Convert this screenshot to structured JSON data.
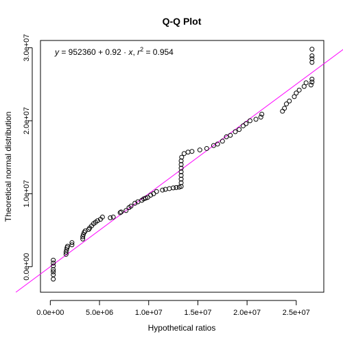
{
  "chart_data": {
    "type": "scatter",
    "title": "Q-Q Plot",
    "xlabel": "Hypothetical ratios",
    "ylabel": "Theoretical normal distribution",
    "xlim": [
      -1000000,
      27800000
    ],
    "ylim": [
      -3500000,
      31000000
    ],
    "x_ticks": [
      0,
      5000000,
      10000000,
      15000000,
      20000000,
      25000000
    ],
    "x_tick_labels": [
      "0.0e+00",
      "5.0e+06",
      "1.0e+07",
      "1.5e+07",
      "2.0e+07",
      "2.5e+07"
    ],
    "y_ticks": [
      0,
      10000000,
      20000000,
      30000000
    ],
    "y_tick_labels": [
      "0.0e+00",
      "1.0e+07",
      "2.0e+07",
      "3.0e+07"
    ],
    "grid": false,
    "annotation": {
      "y_var": "y",
      "rhs": "= 952360 + 0.92 ·",
      "x_var": "x",
      "r_var": "r",
      "r_exp": "2",
      "r_value": "= 0.954"
    },
    "reference_line": {
      "intercept": 0,
      "slope": 1,
      "color": "#ff00ff"
    },
    "series": [
      {
        "points": [
          [
            300000,
            -1700000
          ],
          [
            300000,
            -1100000
          ],
          [
            300000,
            -700000
          ],
          [
            300000,
            -400000
          ],
          [
            300000,
            100000
          ],
          [
            300000,
            500000
          ],
          [
            300000,
            900000
          ],
          [
            1600000,
            1700000
          ],
          [
            1600000,
            2000000
          ],
          [
            1650000,
            2300000
          ],
          [
            1700000,
            2600000
          ],
          [
            1750000,
            2800000
          ],
          [
            2200000,
            3000000
          ],
          [
            2200000,
            3300000
          ],
          [
            3300000,
            3800000
          ],
          [
            3300000,
            4100000
          ],
          [
            3350000,
            4400000
          ],
          [
            3450000,
            4700000
          ],
          [
            3550000,
            4900000
          ],
          [
            3900000,
            5100000
          ],
          [
            4000000,
            5300000
          ],
          [
            4200000,
            5600000
          ],
          [
            4400000,
            5900000
          ],
          [
            4600000,
            6100000
          ],
          [
            4800000,
            6300000
          ],
          [
            5100000,
            6500000
          ],
          [
            5300000,
            6800000
          ],
          [
            6100000,
            6700000
          ],
          [
            6400000,
            6800000
          ],
          [
            7100000,
            7400000
          ],
          [
            7200000,
            7500000
          ],
          [
            7700000,
            7700000
          ],
          [
            8000000,
            8100000
          ],
          [
            8200000,
            8300000
          ],
          [
            8600000,
            8700000
          ],
          [
            8900000,
            8900000
          ],
          [
            9300000,
            9100000
          ],
          [
            9500000,
            9300000
          ],
          [
            9700000,
            9400000
          ],
          [
            9900000,
            9500000
          ],
          [
            10200000,
            9800000
          ],
          [
            10500000,
            10000000
          ],
          [
            10800000,
            10300000
          ],
          [
            11400000,
            10500000
          ],
          [
            11700000,
            10600000
          ],
          [
            12100000,
            10700000
          ],
          [
            12500000,
            10800000
          ],
          [
            12800000,
            10850000
          ],
          [
            13100000,
            10900000
          ],
          [
            13300000,
            11000000
          ],
          [
            13300000,
            11500000
          ],
          [
            13300000,
            12000000
          ],
          [
            13300000,
            12500000
          ],
          [
            13300000,
            13000000
          ],
          [
            13300000,
            13500000
          ],
          [
            13300000,
            14000000
          ],
          [
            13300000,
            14500000
          ],
          [
            13350000,
            15000000
          ],
          [
            13600000,
            15500000
          ],
          [
            14000000,
            15700000
          ],
          [
            14400000,
            15800000
          ],
          [
            15200000,
            16000000
          ],
          [
            15900000,
            16200000
          ],
          [
            16600000,
            16600000
          ],
          [
            17000000,
            16800000
          ],
          [
            17500000,
            17200000
          ],
          [
            17900000,
            17800000
          ],
          [
            18300000,
            18000000
          ],
          [
            18800000,
            18500000
          ],
          [
            19200000,
            18800000
          ],
          [
            19600000,
            19300000
          ],
          [
            19900000,
            19600000
          ],
          [
            20300000,
            20000000
          ],
          [
            20900000,
            20200000
          ],
          [
            21400000,
            20500000
          ],
          [
            21500000,
            20900000
          ],
          [
            23600000,
            21300000
          ],
          [
            23800000,
            21700000
          ],
          [
            24000000,
            22300000
          ],
          [
            24300000,
            22700000
          ],
          [
            24800000,
            23300000
          ],
          [
            25000000,
            23800000
          ],
          [
            25300000,
            24200000
          ],
          [
            25800000,
            24700000
          ],
          [
            26000000,
            25200000
          ],
          [
            26500000,
            24900000
          ],
          [
            26600000,
            25300000
          ],
          [
            26600000,
            25700000
          ],
          [
            26600000,
            28000000
          ],
          [
            26600000,
            28500000
          ],
          [
            26600000,
            28900000
          ],
          [
            26600000,
            29800000
          ]
        ]
      }
    ]
  }
}
